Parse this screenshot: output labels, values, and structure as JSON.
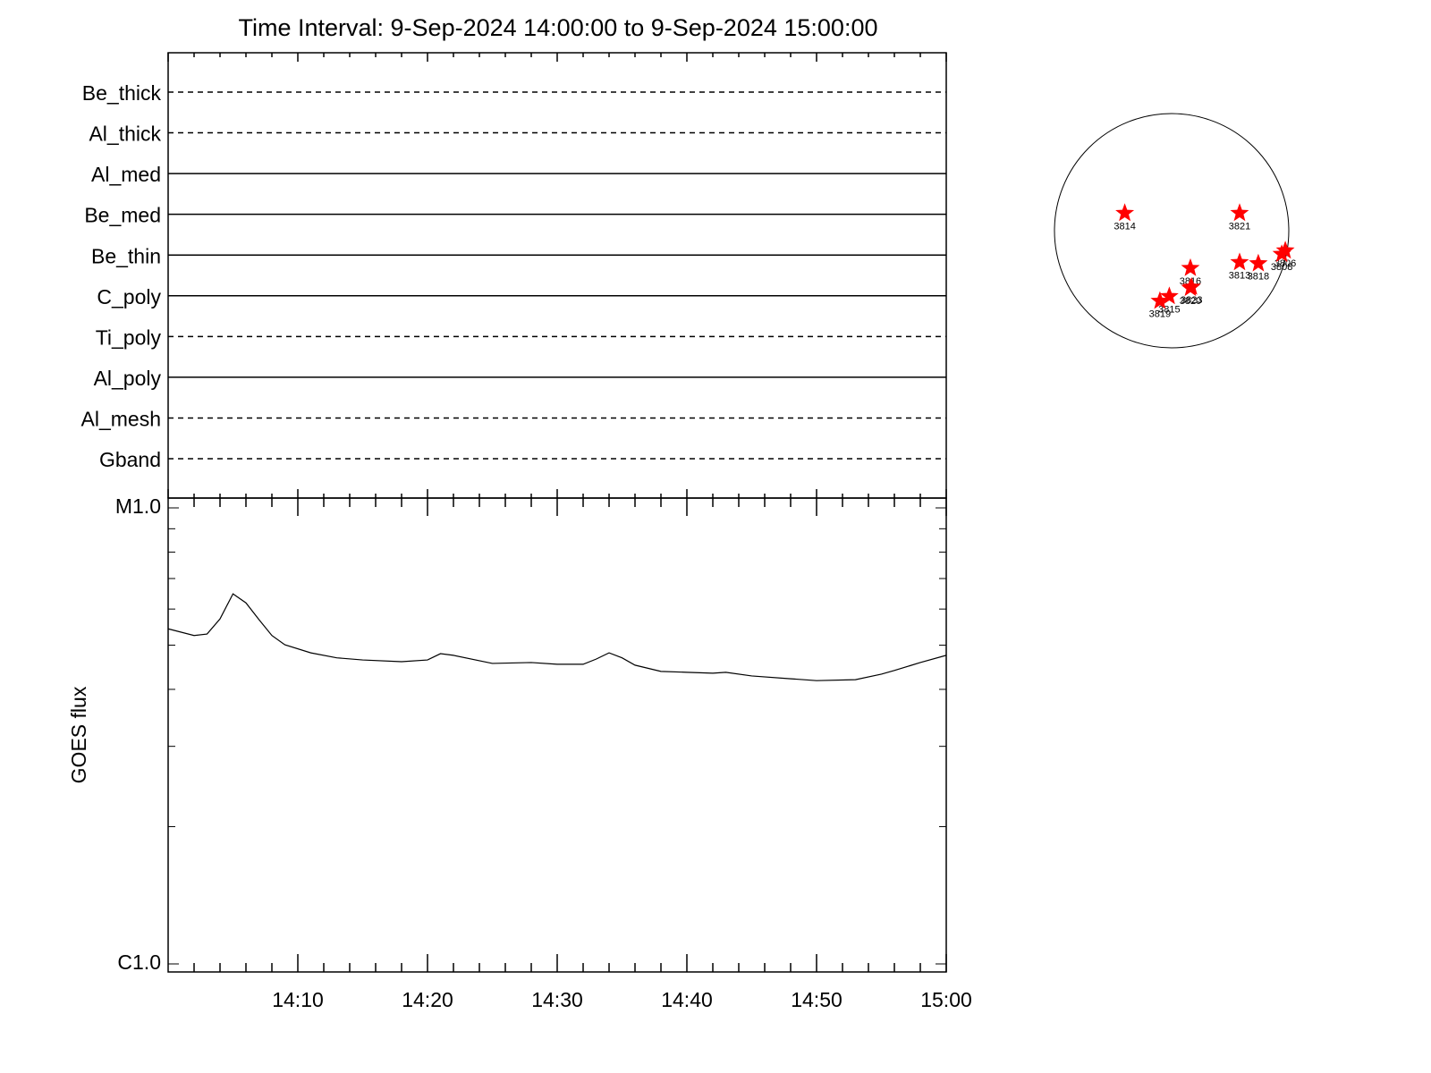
{
  "chart_data": [
    {
      "type": "filter-timeline",
      "title": "Time Interval:  9-Sep-2024 14:00:00 to  9-Sep-2024 15:00:00",
      "categories": [
        "Be_thick",
        "Al_thick",
        "Al_med",
        "Be_med",
        "Be_thin",
        "C_poly",
        "Ti_poly",
        "Al_poly",
        "Al_mesh",
        "Gband"
      ],
      "styles": [
        "dashed",
        "dashed",
        "solid",
        "solid",
        "solid",
        "solid",
        "dashed",
        "solid",
        "dashed",
        "dashed"
      ],
      "xlim": [
        "14:00",
        "15:00"
      ]
    },
    {
      "type": "line",
      "y_label": "GOES flux",
      "log_y": true,
      "color": "#000000",
      "x": [
        "14:00",
        "14:02",
        "14:03",
        "14:04",
        "14:05",
        "14:06",
        "14:07",
        "14:08",
        "14:09",
        "14:11",
        "14:13",
        "14:15",
        "14:18",
        "14:20",
        "14:21",
        "14:22",
        "14:25",
        "14:28",
        "14:30",
        "14:32",
        "14:33",
        "14:34",
        "14:35",
        "14:36",
        "14:38",
        "14:40",
        "14:42",
        "14:43",
        "14:45",
        "14:48",
        "14:50",
        "14:53",
        "14:55",
        "14:56",
        "14:58",
        "15:00"
      ],
      "values": [
        5.43e-06,
        5.25e-06,
        5.29e-06,
        5.71e-06,
        6.48e-06,
        6.19e-06,
        5.69e-06,
        5.25e-06,
        5.01e-06,
        4.81e-06,
        4.69e-06,
        4.64e-06,
        4.6e-06,
        4.64e-06,
        4.79e-06,
        4.75e-06,
        4.56e-06,
        4.58e-06,
        4.54e-06,
        4.54e-06,
        4.66e-06,
        4.81e-06,
        4.69e-06,
        4.52e-06,
        4.38e-06,
        4.36e-06,
        4.34e-06,
        4.36e-06,
        4.28e-06,
        4.22e-06,
        4.18e-06,
        4.2e-06,
        4.32e-06,
        4.4e-06,
        4.58e-06,
        4.75e-06
      ],
      "xlim": [
        "14:00",
        "15:00"
      ],
      "xticks": [
        "14:10",
        "14:20",
        "14:30",
        "14:40",
        "14:50",
        "15:00"
      ],
      "xminorticks": [
        "14:02",
        "14:04",
        "14:06",
        "14:08",
        "14:12",
        "14:14",
        "14:16",
        "14:18",
        "14:22",
        "14:24",
        "14:26",
        "14:28",
        "14:32",
        "14:34",
        "14:36",
        "14:38",
        "14:42",
        "14:44",
        "14:46",
        "14:48",
        "14:52",
        "14:54",
        "14:56",
        "14:58"
      ],
      "ylim": [
        1e-06,
        1e-05
      ],
      "yticks": [
        {
          "value": 1e-06,
          "label": "C1.0"
        },
        {
          "value": 1e-05,
          "label": "M1.0"
        }
      ],
      "yminorticks": [
        2e-06,
        3e-06,
        4e-06,
        5e-06,
        6e-06,
        7e-06,
        8e-06,
        9e-06
      ]
    },
    {
      "type": "solar-disk",
      "color": "#ff0000",
      "regions": [
        {
          "label": "3814",
          "x": -0.4,
          "y": 0.15
        },
        {
          "label": "3821",
          "x": 0.58,
          "y": 0.15
        },
        {
          "label": "3816",
          "x": 0.16,
          "y": -0.32
        },
        {
          "label": "3813",
          "x": 0.58,
          "y": -0.27
        },
        {
          "label": "3818",
          "x": 0.74,
          "y": -0.28
        },
        {
          "label": "3806",
          "x": 0.97,
          "y": -0.17
        },
        {
          "label": "3808",
          "x": 0.94,
          "y": -0.2
        },
        {
          "label": "3820",
          "x": 0.16,
          "y": -0.49
        },
        {
          "label": "3823",
          "x": 0.17,
          "y": -0.48
        },
        {
          "label": "3815",
          "x": -0.02,
          "y": -0.56
        },
        {
          "label": "3819",
          "x": -0.1,
          "y": -0.6
        }
      ]
    }
  ]
}
